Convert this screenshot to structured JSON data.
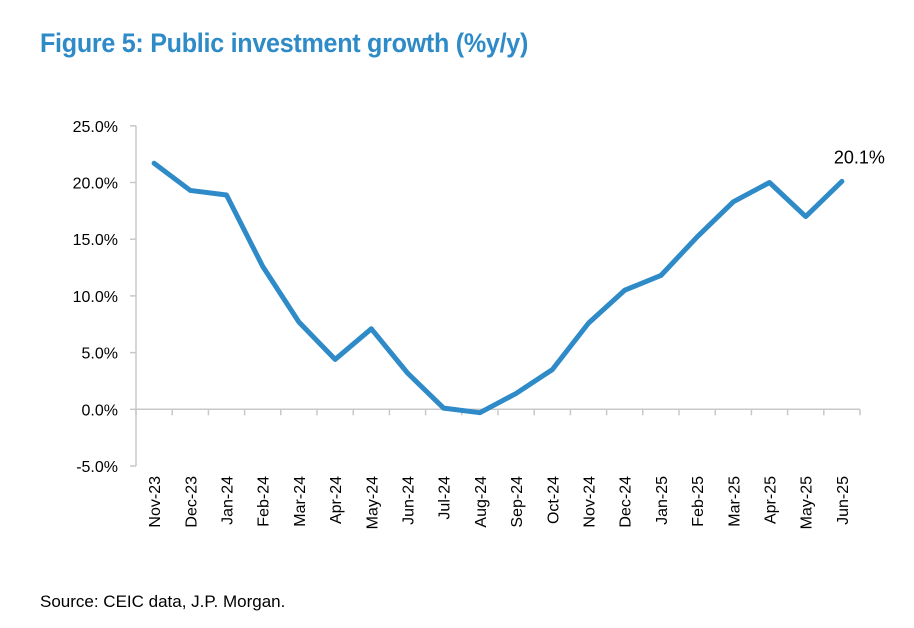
{
  "title": "Figure 5: Public investment growth (%y/y)",
  "source": "Source: CEIC data, J.P. Morgan.",
  "chart_data": {
    "type": "line",
    "title": "Figure 5: Public investment growth (%y/y)",
    "xlabel": "",
    "ylabel": "",
    "ylim": [
      -5,
      25
    ],
    "yticks": [
      -5,
      0,
      5,
      10,
      15,
      20,
      25
    ],
    "ytick_labels": [
      "-5.0%",
      "0.0%",
      "5.0%",
      "10.0%",
      "15.0%",
      "20.0%",
      "25.0%"
    ],
    "grid": false,
    "categories": [
      "Nov-23",
      "Dec-23",
      "Jan-24",
      "Feb-24",
      "Mar-24",
      "Apr-24",
      "May-24",
      "Jun-24",
      "Jul-24",
      "Aug-24",
      "Sep-24",
      "Oct-24",
      "Nov-24",
      "Dec-24",
      "Jan-25",
      "Feb-25",
      "Mar-25",
      "Apr-25",
      "May-25",
      "Jun-25"
    ],
    "series": [
      {
        "name": "Public investment growth",
        "color": "#2e8bc8",
        "values": [
          21.7,
          19.3,
          18.9,
          12.6,
          7.7,
          4.4,
          7.1,
          3.2,
          0.1,
          -0.3,
          1.4,
          3.5,
          7.6,
          10.5,
          11.8,
          15.2,
          18.3,
          20.0,
          17.0,
          20.1
        ]
      }
    ],
    "annotations": [
      {
        "category": "Jun-25",
        "text": "20.1%"
      }
    ]
  }
}
